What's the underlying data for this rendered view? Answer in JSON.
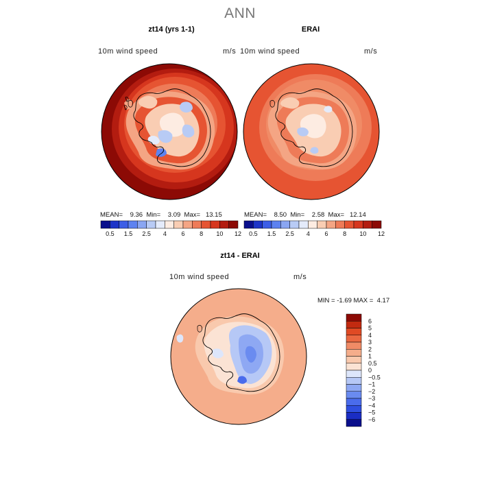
{
  "page": {
    "title": "ANN"
  },
  "panels": [
    {
      "title": "zt14 (yrs 1-1)",
      "variable": "10m wind speed",
      "units": "m/s",
      "stats": {
        "mean_label": "MEAN=",
        "mean": "9.36",
        "min_label": "Min=",
        "min": "3.09",
        "max_label": "Max=",
        "max": "13.15"
      }
    },
    {
      "title": "ERAI",
      "variable": "10m wind speed",
      "units": "m/s",
      "stats": {
        "mean_label": "MEAN=",
        "mean": "8.50",
        "min_label": "Min=",
        "min": "2.58",
        "max_label": "Max=",
        "max": "12.14"
      }
    },
    {
      "title": "zt14 - ERAI",
      "variable": "10m wind speed",
      "units": "m/s",
      "stats": {
        "min_label": "MIN =",
        "min": "-1.69",
        "max_label": "MAX =",
        "max": "4.17"
      }
    }
  ],
  "colorbar_abs": {
    "colors": [
      "#0a0f8c",
      "#1e35c8",
      "#3c5ee6",
      "#5d82f0",
      "#8aa6f2",
      "#b8cbf5",
      "#e4ebfb",
      "#fdece2",
      "#f9cdb3",
      "#f4a584",
      "#ee7b58",
      "#e65432",
      "#d6361e",
      "#b31c10",
      "#8c0a05"
    ],
    "tick_labels": [
      "0.5",
      "1.5",
      "2.5",
      "4",
      "6",
      "8",
      "10",
      "12"
    ]
  },
  "colorbar_diff": {
    "colors": [
      "#0a0f8c",
      "#1a2dc4",
      "#2f4fe0",
      "#4a6cec",
      "#6a8bf0",
      "#8ea8f3",
      "#b6c8f6",
      "#dde6fb",
      "#fbe3d4",
      "#f9c9ad",
      "#f5ad8b",
      "#f08b66",
      "#ea6841",
      "#e04a24",
      "#c22a10",
      "#8c0a05"
    ],
    "tick_labels": [
      "6",
      "5",
      "4",
      "3",
      "2",
      "1",
      "0.5",
      "0",
      "−0.5",
      "−1",
      "−2",
      "−3",
      "−4",
      "−5",
      "−6"
    ]
  }
}
